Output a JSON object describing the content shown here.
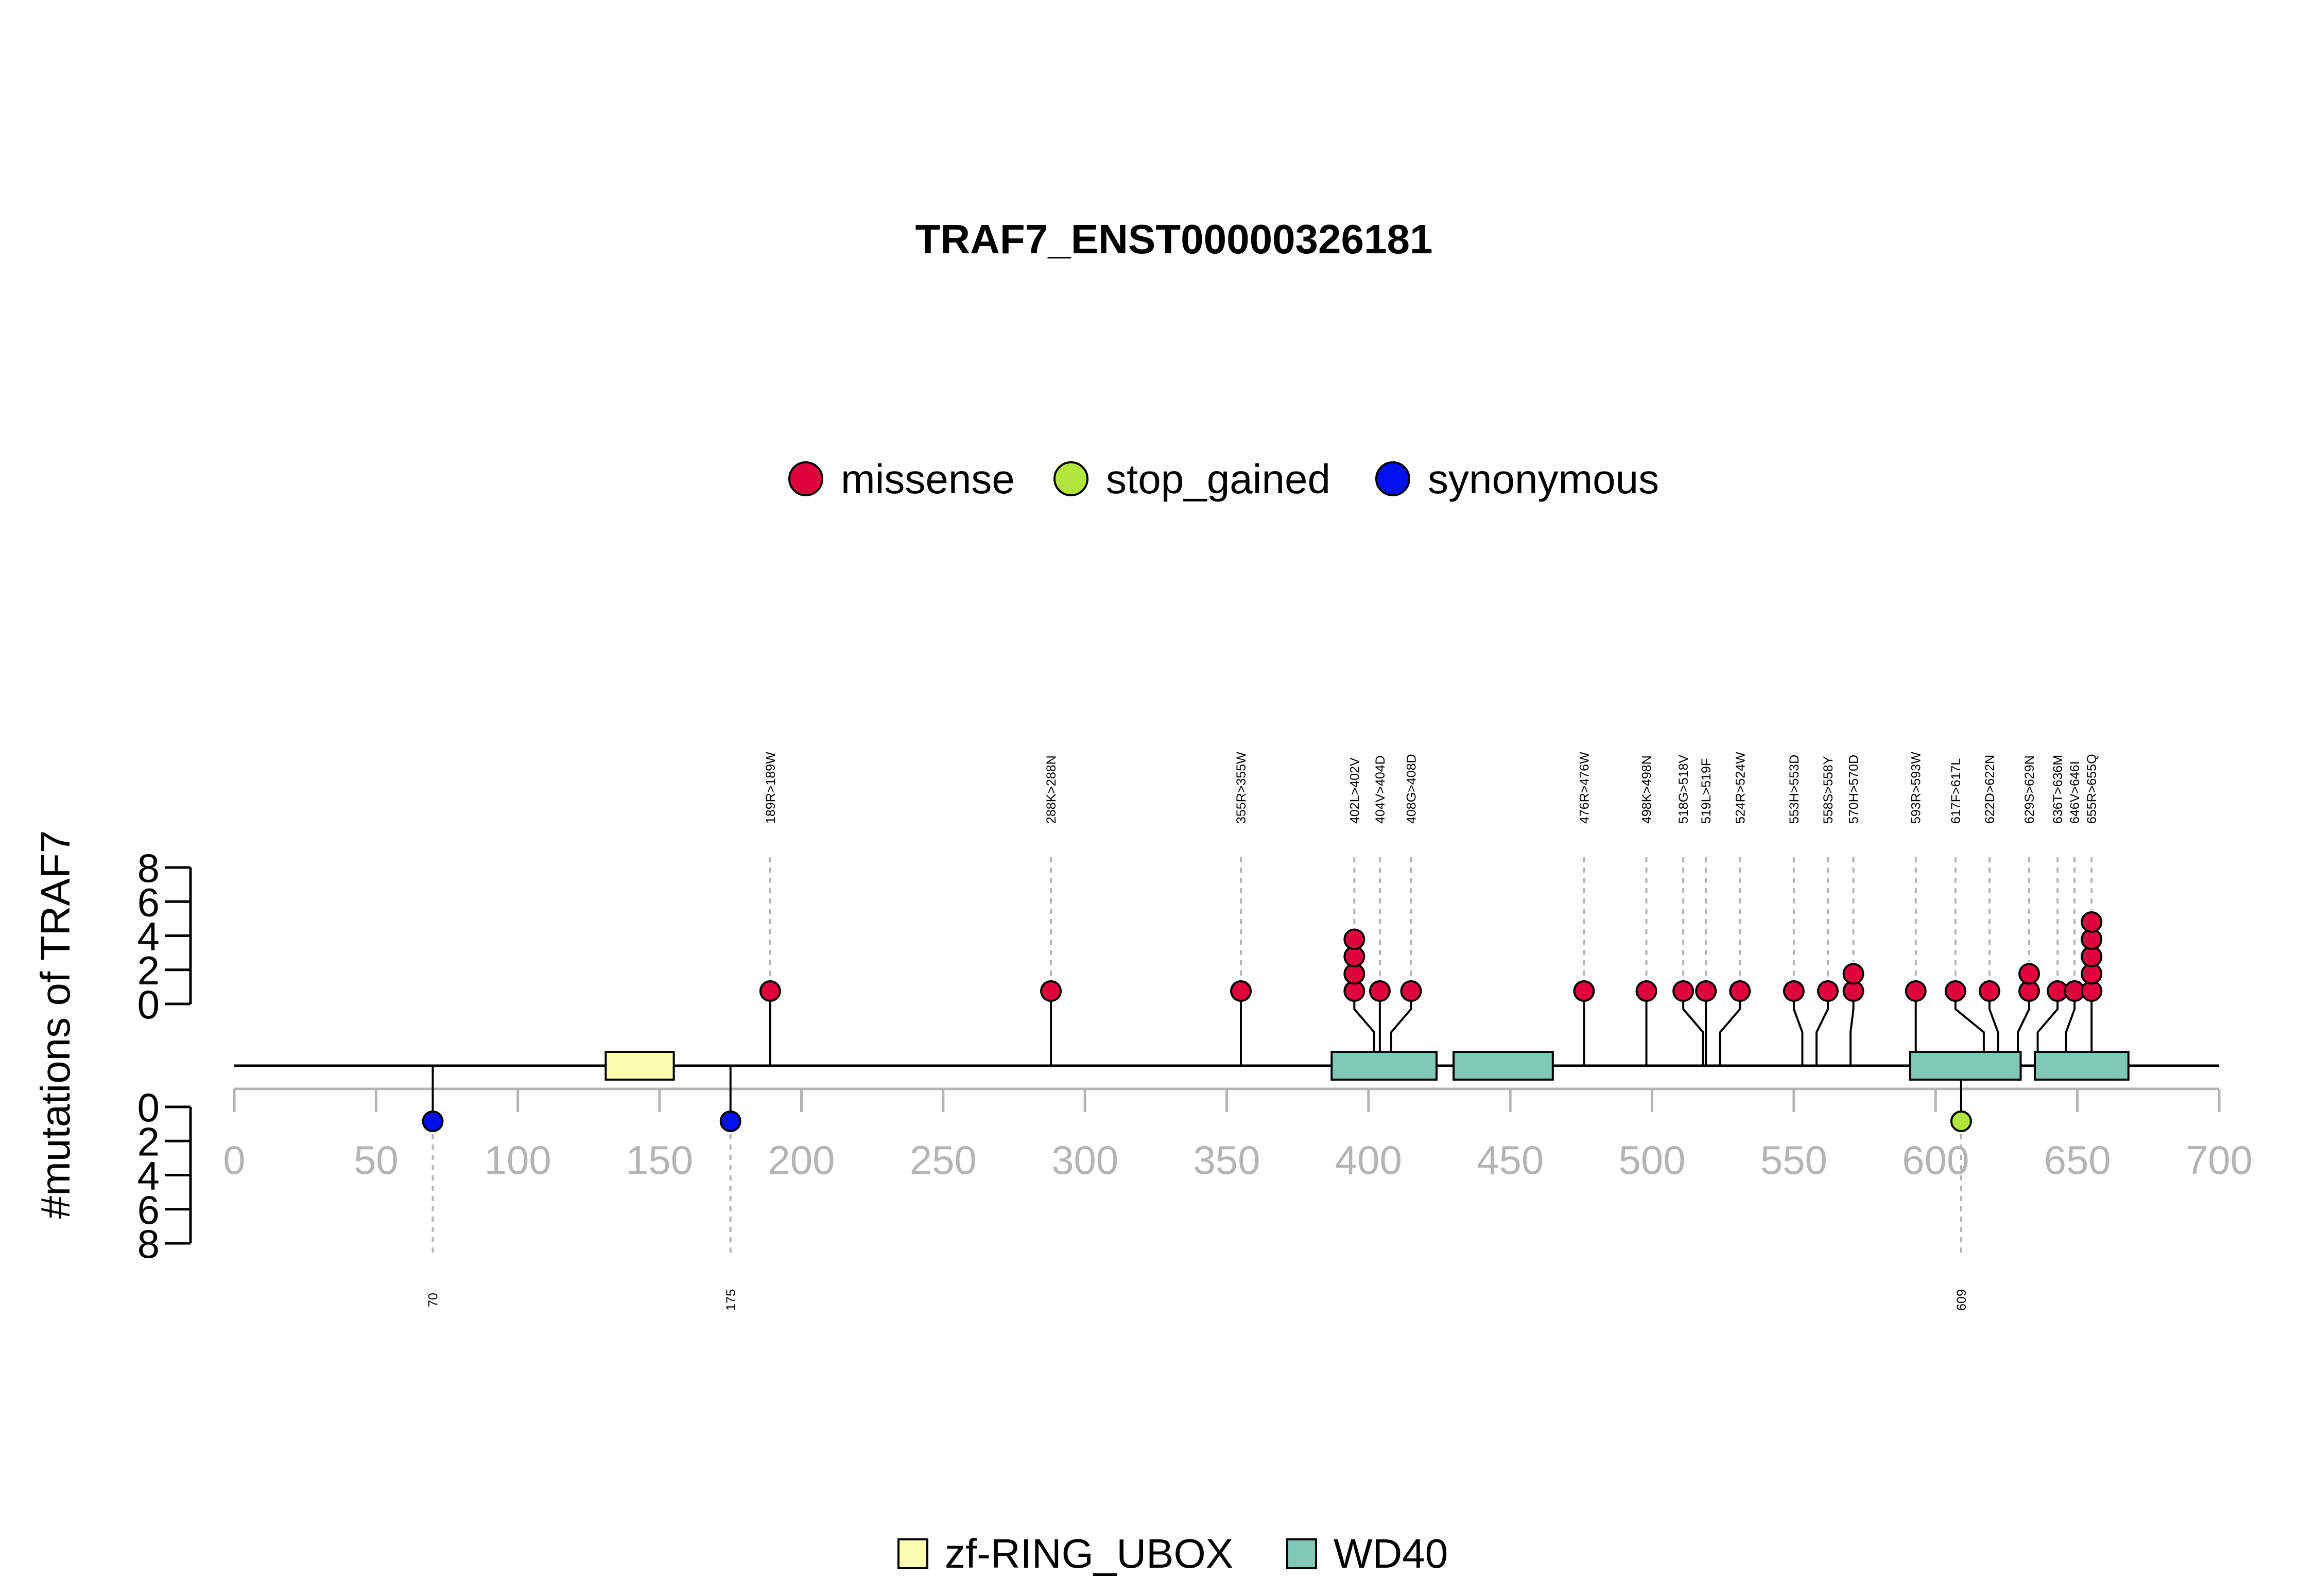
{
  "chart_data": {
    "type": "lollipop",
    "title": "TRAF7_ENST00000326181",
    "ylabel": "#mutations of TRAF7",
    "xlim": [
      0,
      700
    ],
    "x_ticks": [
      "0",
      "50",
      "100",
      "150",
      "200",
      "250",
      "300",
      "350",
      "400",
      "450",
      "500",
      "550",
      "600",
      "650",
      "700"
    ],
    "y_ticks": [
      "0",
      "2",
      "4",
      "6",
      "8"
    ],
    "ylim": [
      0,
      8
    ],
    "legend": [
      {
        "name": "missense",
        "color": "#e0003c"
      },
      {
        "name": "stop_gained",
        "color": "#b2e63c"
      },
      {
        "name": "synonymous",
        "color": "#0010f0"
      }
    ],
    "domain_legend": [
      {
        "name": "zf-RING_UBOX",
        "color": "#fefeb0"
      },
      {
        "name": "WD40",
        "color": "#7fc9b6"
      }
    ],
    "domains": [
      {
        "name": "zf-RING_UBOX",
        "start": 131,
        "end": 155
      },
      {
        "name": "WD40",
        "start": 387,
        "end": 424
      },
      {
        "name": "WD40",
        "start": 430,
        "end": 465
      },
      {
        "name": "WD40",
        "start": 591,
        "end": 630
      },
      {
        "name": "WD40",
        "start": 635,
        "end": 668
      }
    ],
    "upper_mutations": [
      {
        "label": "189R>189W",
        "position": 189,
        "count": 1,
        "type": "missense"
      },
      {
        "label": "288K>288N",
        "position": 288,
        "count": 1,
        "type": "missense"
      },
      {
        "label": "355R>355W",
        "position": 355,
        "count": 1,
        "type": "missense"
      },
      {
        "label": "402L>402V",
        "position": 402,
        "count": 4,
        "type": "missense"
      },
      {
        "label": "404V>404D",
        "position": 404,
        "count": 1,
        "type": "missense"
      },
      {
        "label": "408G>408D",
        "position": 408,
        "count": 1,
        "type": "missense"
      },
      {
        "label": "476R>476W",
        "position": 476,
        "count": 1,
        "type": "missense"
      },
      {
        "label": "498K>498N",
        "position": 498,
        "count": 1,
        "type": "missense"
      },
      {
        "label": "518G>518V",
        "position": 518,
        "count": 1,
        "type": "missense"
      },
      {
        "label": "519L>519F",
        "position": 519,
        "count": 1,
        "type": "missense"
      },
      {
        "label": "524R>524W",
        "position": 524,
        "count": 1,
        "type": "missense"
      },
      {
        "label": "553H>553D",
        "position": 553,
        "count": 1,
        "type": "missense"
      },
      {
        "label": "558S>558Y",
        "position": 558,
        "count": 1,
        "type": "missense"
      },
      {
        "label": "570H>570D",
        "position": 570,
        "count": 2,
        "type": "missense"
      },
      {
        "label": "593R>593W",
        "position": 593,
        "count": 1,
        "type": "missense"
      },
      {
        "label": "617F>617L",
        "position": 617,
        "count": 1,
        "type": "missense"
      },
      {
        "label": "622D>622N",
        "position": 622,
        "count": 1,
        "type": "missense"
      },
      {
        "label": "629S>629N",
        "position": 629,
        "count": 2,
        "type": "missense"
      },
      {
        "label": "636T>636M",
        "position": 636,
        "count": 1,
        "type": "missense"
      },
      {
        "label": "646V>646I",
        "position": 646,
        "count": 1,
        "type": "missense"
      },
      {
        "label": "655R>655Q",
        "position": 655,
        "count": 5,
        "type": "missense"
      }
    ],
    "lower_mutations": [
      {
        "label": "70",
        "position": 70,
        "count": 1,
        "type": "synonymous"
      },
      {
        "label": "175",
        "position": 175,
        "count": 1,
        "type": "synonymous"
      },
      {
        "label": "609",
        "position": 609,
        "count": 1,
        "type": "stop_gained"
      }
    ]
  }
}
